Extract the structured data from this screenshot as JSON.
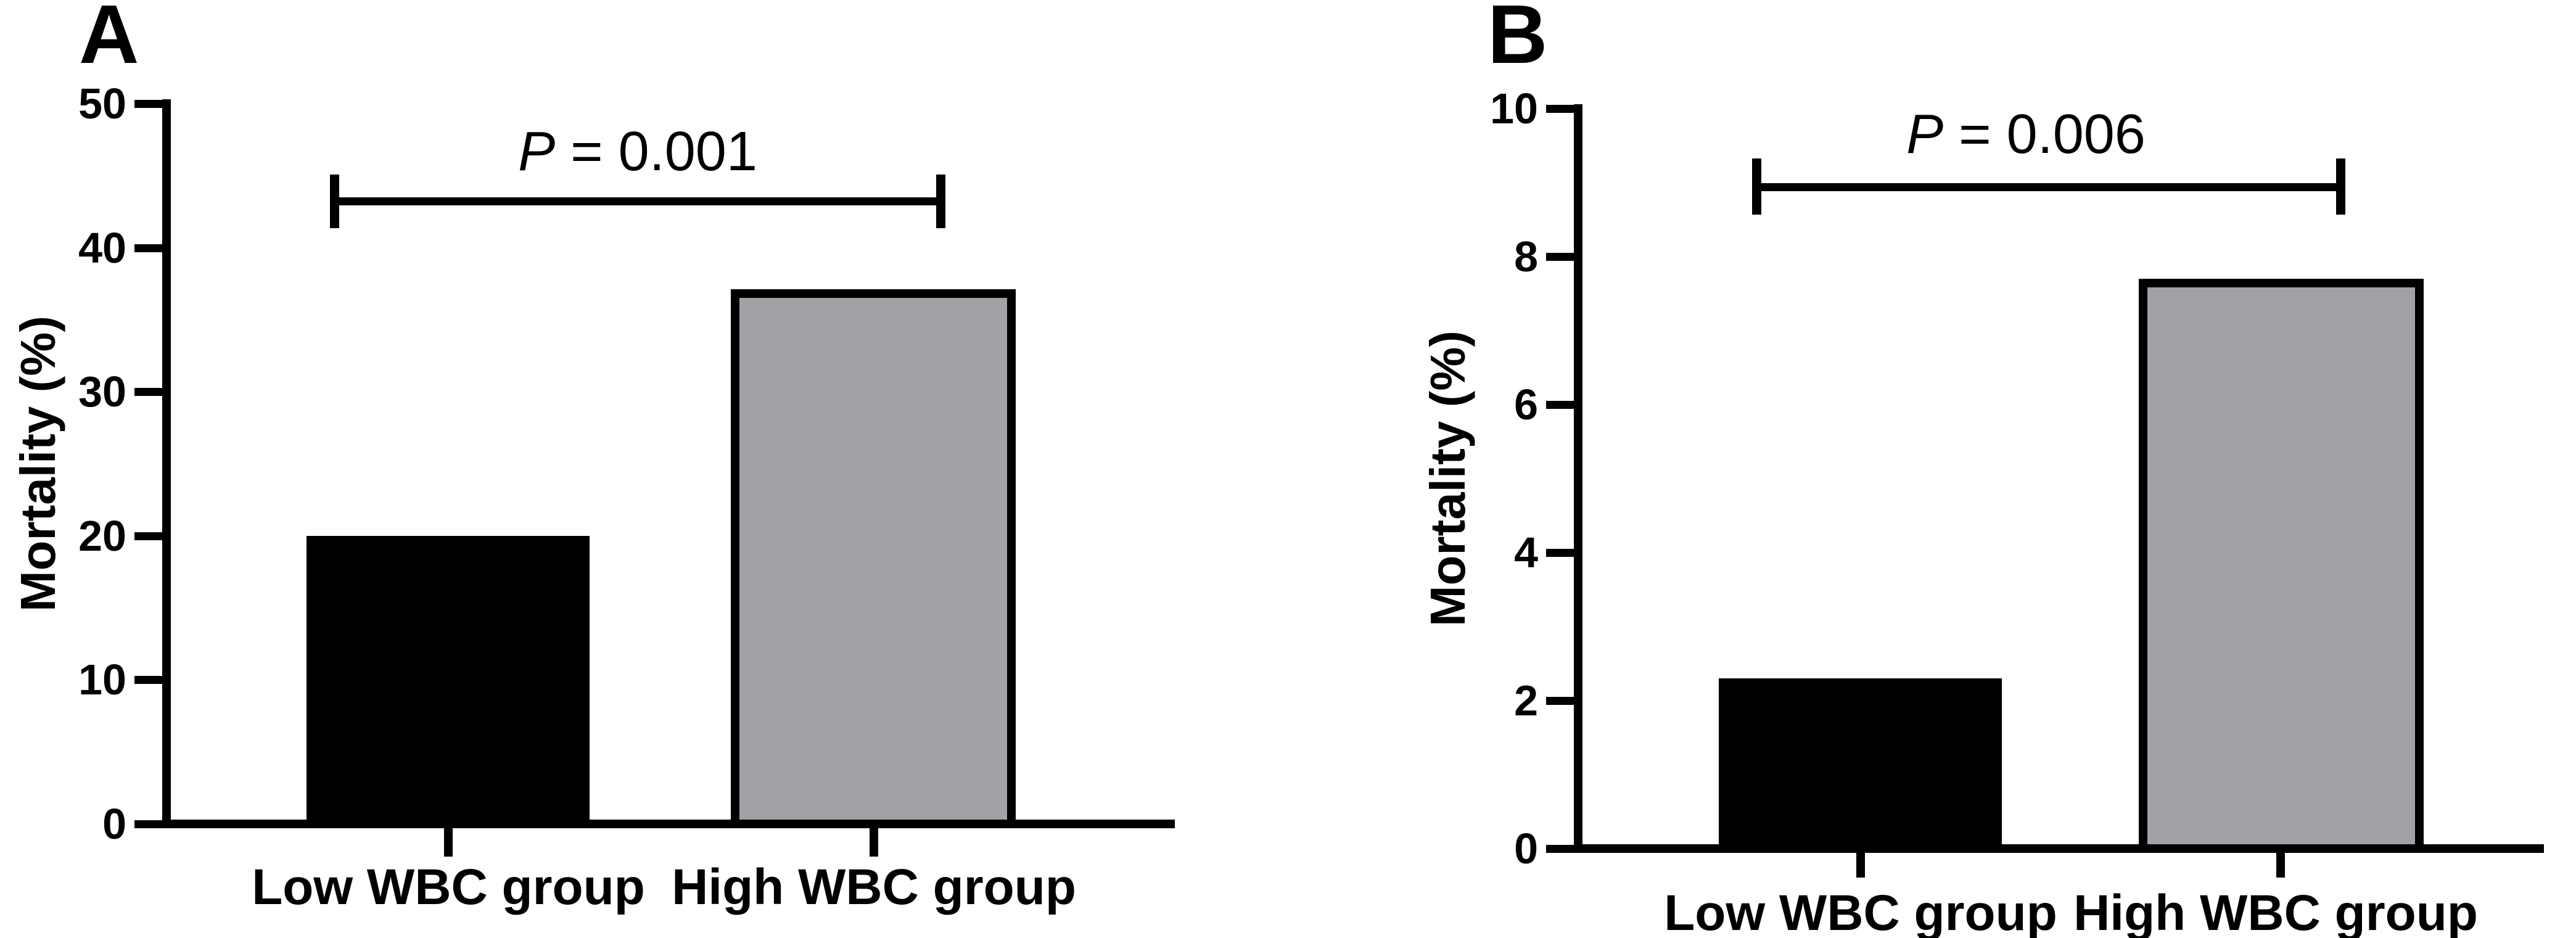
{
  "figure": {
    "background": "#FFFFFF",
    "axis_color": "#000000"
  },
  "chart_data": [
    {
      "type": "bar",
      "panel_label": "A",
      "title": "",
      "xlabel": "",
      "ylabel": "Mortality (%)",
      "categories": [
        "Low WBC group",
        "High WBC group"
      ],
      "values": [
        20.0,
        37.1
      ],
      "bar_colors": [
        "#000000",
        "#A2A1A6"
      ],
      "bar_border_color": "#000000",
      "ylim": [
        0,
        50
      ],
      "yticks": [
        0,
        10,
        20,
        30,
        40,
        50
      ],
      "ytick_labels": [
        "0",
        "10",
        "20",
        "30",
        "40",
        "50"
      ],
      "grid": "off",
      "legend": "none",
      "annotation": "P = 0.001",
      "p_symbol": "P",
      "p_rest": " = 0.001"
    },
    {
      "type": "bar",
      "panel_label": "B",
      "title": "",
      "xlabel": "",
      "ylabel": "Mortality (%)",
      "categories": [
        "Low WBC group",
        "High WBC group"
      ],
      "values": [
        2.3,
        7.7
      ],
      "bar_colors": [
        "#000000",
        "#A2A1A6"
      ],
      "bar_border_color": "#000000",
      "ylim": [
        0,
        10
      ],
      "yticks": [
        0,
        2,
        4,
        6,
        8,
        10
      ],
      "ytick_labels": [
        "0",
        "2",
        "4",
        "6",
        "8",
        "10"
      ],
      "grid": "off",
      "legend": "none",
      "annotation": "P = 0.006",
      "p_symbol": "P",
      "p_rest": " = 0.006"
    }
  ]
}
